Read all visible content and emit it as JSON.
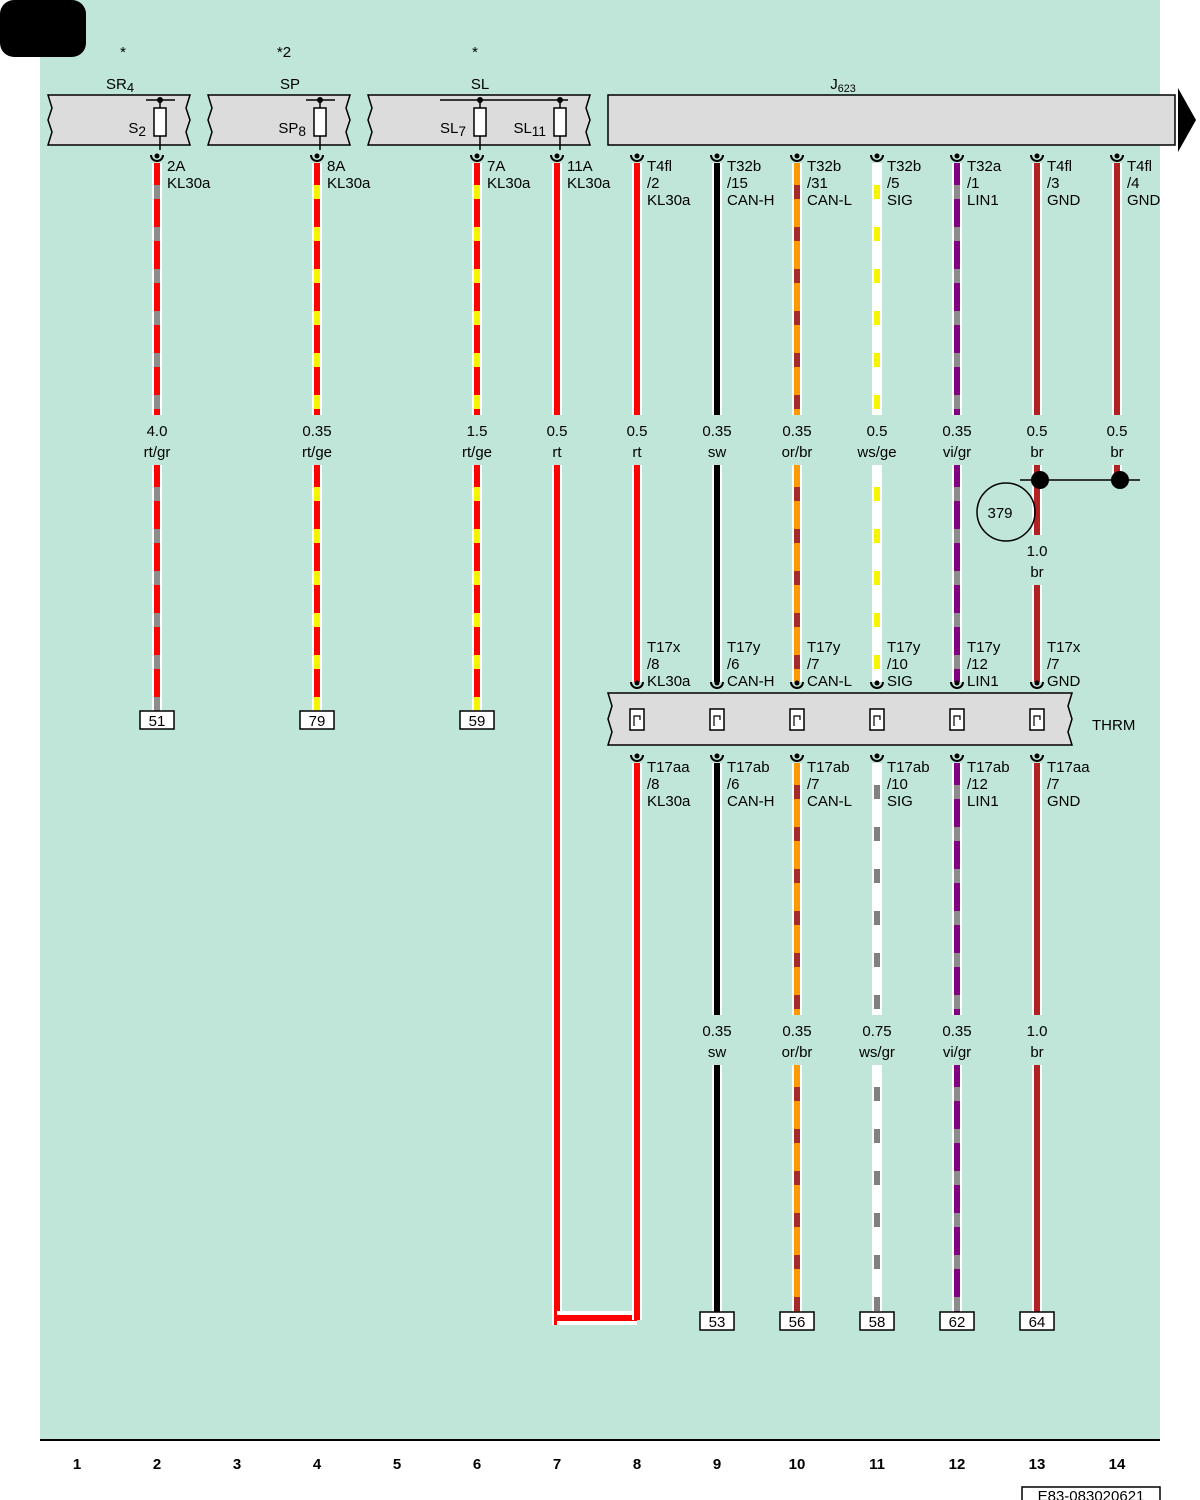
{
  "components": [
    {
      "note": "*",
      "name": "SR",
      "index": "4",
      "fuses": [
        {
          "name": "S",
          "index": "2"
        }
      ]
    },
    {
      "note": "*2",
      "name": "SP",
      "fuses": [
        {
          "name": "SP",
          "index": "8"
        }
      ]
    },
    {
      "note": "*",
      "name": "SL",
      "fuses": [
        {
          "name": "SL",
          "index": "7"
        },
        {
          "name": "SL",
          "index": "11"
        }
      ]
    },
    {
      "name": "J",
      "index": "623"
    }
  ],
  "wires": [
    {
      "top_pin": [
        "2A",
        "KL30a"
      ],
      "top_size": "4.0",
      "top_color": "rt/gr",
      "colors": [
        "#ff0000",
        "#8c8c8c"
      ],
      "terminal": "51"
    },
    {
      "top_pin": [
        "8A",
        "KL30a"
      ],
      "top_size": "0.35",
      "top_color": "rt/ge",
      "colors": [
        "#ff0000",
        "#f5f500"
      ],
      "terminal": "79"
    },
    {
      "top_pin": [
        "7A",
        "KL30a"
      ],
      "top_size": "1.5",
      "top_color": "rt/ge",
      "colors": [
        "#ff0000",
        "#f5f500"
      ],
      "terminal": "59"
    },
    {
      "top_pin": [
        "11A",
        "KL30a"
      ],
      "top_size": "0.5",
      "top_color": "rt",
      "colors": [
        "#ff0000"
      ]
    },
    {
      "top_pin": [
        "T4fl",
        "/2",
        "KL30a"
      ],
      "top_size": "0.5",
      "top_color": "rt",
      "colors": [
        "#ff0000"
      ],
      "thrm_top_pin": [
        "T17x",
        "/8",
        "KL30a"
      ],
      "thrm_bottom_pin": [
        "T17aa",
        "/8",
        "KL30a"
      ]
    },
    {
      "top_pin": [
        "T32b",
        "/15",
        "CAN-H"
      ],
      "top_size": "0.35",
      "top_color": "sw",
      "colors": [
        "#000000"
      ],
      "thrm_top_pin": [
        "T17y",
        "/6",
        "CAN-H"
      ],
      "thrm_bottom_pin": [
        "T17ab",
        "/6",
        "CAN-H"
      ],
      "bottom_size": "0.35",
      "bottom_color": "sw",
      "bottom_colors": [
        "#000000"
      ],
      "terminal": "53"
    },
    {
      "top_pin": [
        "T32b",
        "/31",
        "CAN-L"
      ],
      "top_size": "0.35",
      "top_color": "or/br",
      "colors": [
        "#ff9900",
        "#a52a2a"
      ],
      "thrm_top_pin": [
        "T17y",
        "/7",
        "CAN-L"
      ],
      "thrm_bottom_pin": [
        "T17ab",
        "/7",
        "CAN-L"
      ],
      "bottom_size": "0.35",
      "bottom_color": "or/br",
      "bottom_colors": [
        "#ff9900",
        "#a52a2a"
      ],
      "terminal": "56"
    },
    {
      "top_pin": [
        "T32b",
        "/5",
        "SIG"
      ],
      "top_size": "0.5",
      "top_color": "ws/ge",
      "colors": [
        "#ffffff",
        "#f5f500"
      ],
      "thrm_top_pin": [
        "T17y",
        "/10",
        "SIG"
      ],
      "thrm_bottom_pin": [
        "T17ab",
        "/10",
        "SIG"
      ],
      "bottom_size": "0.75",
      "bottom_color": "ws/gr",
      "bottom_colors": [
        "#ffffff",
        "#808080"
      ],
      "terminal": "58"
    },
    {
      "top_pin": [
        "T32a",
        "/1",
        "LIN1"
      ],
      "top_size": "0.35",
      "top_color": "vi/gr",
      "colors": [
        "#800080",
        "#8c8c8c"
      ],
      "thrm_top_pin": [
        "T17y",
        "/12",
        "LIN1"
      ],
      "thrm_bottom_pin": [
        "T17ab",
        "/12",
        "LIN1"
      ],
      "bottom_size": "0.35",
      "bottom_color": "vi/gr",
      "bottom_colors": [
        "#800080",
        "#8c8c8c"
      ],
      "terminal": "62"
    },
    {
      "top_pin": [
        "T4fl",
        "/3",
        "GND"
      ],
      "top_size": "0.5",
      "top_color": "br",
      "colors": [
        "#b22222"
      ],
      "mid_size": "1.0",
      "mid_color": "br",
      "thrm_top_pin": [
        "T17x",
        "/7",
        "GND"
      ],
      "thrm_bottom_pin": [
        "T17aa",
        "/7",
        "GND"
      ],
      "bottom_size": "1.0",
      "bottom_color": "br",
      "bottom_colors": [
        "#b22222"
      ],
      "terminal": "64"
    },
    {
      "top_pin": [
        "T4fl",
        "/4",
        "GND"
      ],
      "top_size": "0.5",
      "top_color": "br",
      "colors": [
        "#b22222"
      ]
    }
  ],
  "connector": "THRM",
  "ground_point": "379",
  "column_numbers": [
    1,
    2,
    3,
    4,
    5,
    6,
    7,
    8,
    9,
    10,
    11,
    12,
    13,
    14
  ],
  "drawing_number": "E83-083020621"
}
